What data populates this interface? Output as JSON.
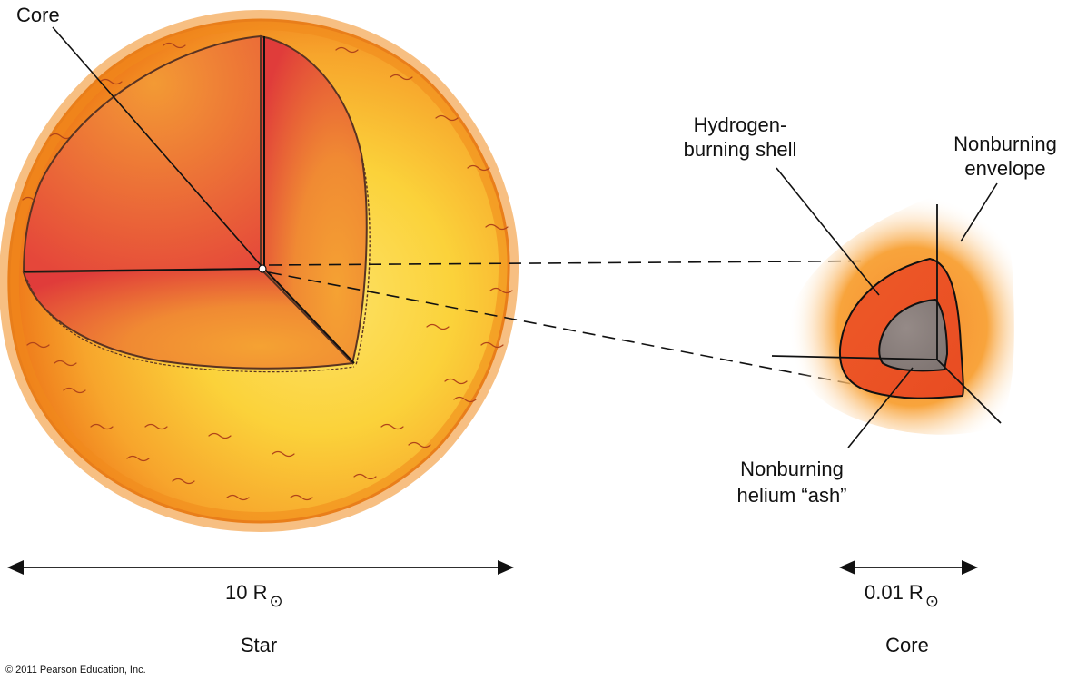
{
  "labels": {
    "core_top": "Core",
    "hydrogen_shell_line1": "Hydrogen-",
    "hydrogen_shell_line2": "burning shell",
    "envelope_line1": "Nonburning",
    "envelope_line2": "envelope",
    "helium_ash_line1": "Nonburning",
    "helium_ash_line2": "helium “ash”",
    "star_caption": "Star",
    "core_caption": "Core",
    "copyright": "© 2011 Pearson Education, Inc."
  },
  "scales": {
    "star_size_value": "10 R",
    "core_size_value": "0.01 R",
    "sun_symbol": "⊙"
  },
  "colors": {
    "star_outer": "#f08a1c",
    "star_glow": "#fbd23a",
    "cutaway_red": "#e2413b",
    "cutaway_orange": "#f28c2e",
    "shell_red": "#eb5426",
    "helium_gray": "#8a7f7c",
    "envelope_glow": "#f7a23a"
  }
}
